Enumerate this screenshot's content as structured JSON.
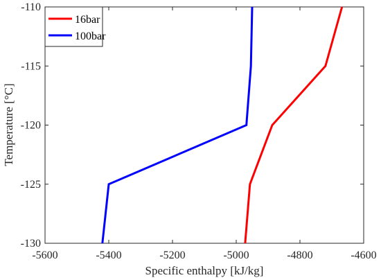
{
  "chart_data": {
    "type": "line",
    "title": "",
    "xlabel": "Specific enthalpy [kJ/kg]",
    "ylabel": "Temperature [°C]",
    "xlim": [
      -5600,
      -4600
    ],
    "ylim": [
      -130,
      -110
    ],
    "x_ticks": [
      -5600,
      -5400,
      -5200,
      -5000,
      -4800,
      -4600
    ],
    "y_ticks": [
      -130,
      -125,
      -120,
      -115,
      -110
    ],
    "x_tick_labels": [
      "-5600",
      "-5400",
      "-5200",
      "-5000",
      "-4800",
      "-4600"
    ],
    "y_tick_labels": [
      "-130",
      "-125",
      "-120",
      "-115",
      "-110"
    ],
    "grid": false,
    "legend_position": "top-left",
    "series": [
      {
        "name": "16bar",
        "color": "#ff0000",
        "points": [
          {
            "x": -4972,
            "y": -130
          },
          {
            "x": -4957,
            "y": -125
          },
          {
            "x": -4887,
            "y": -120
          },
          {
            "x": -4720,
            "y": -115
          },
          {
            "x": -4668,
            "y": -110
          }
        ]
      },
      {
        "name": "100bar",
        "color": "#0000ff",
        "points": [
          {
            "x": -5420,
            "y": -130
          },
          {
            "x": -5400,
            "y": -125
          },
          {
            "x": -4968,
            "y": -120
          },
          {
            "x": -4954,
            "y": -115
          },
          {
            "x": -4950,
            "y": -110
          }
        ]
      }
    ]
  }
}
